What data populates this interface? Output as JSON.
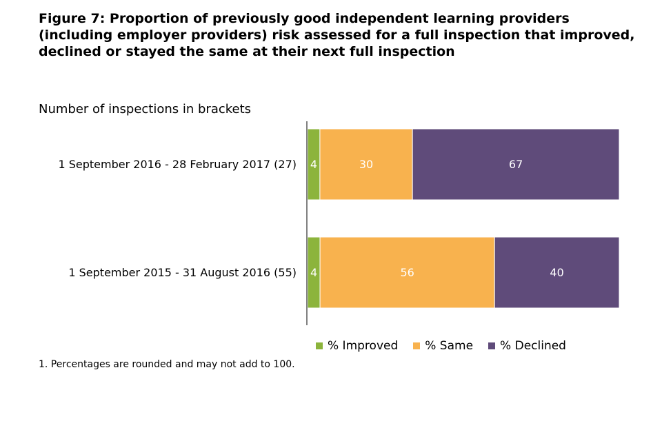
{
  "figure": {
    "title": "Figure 7: Proportion of previously good independent learning providers (including employer providers) risk assessed for a full inspection that improved, declined or stayed the same at their next full inspection",
    "subtitle": "Number of inspections in brackets",
    "footnote": "1. Percentages are rounded and may not add to 100."
  },
  "chart_data": {
    "type": "bar",
    "orientation": "horizontal",
    "stacked": true,
    "categories": [
      "1 September 2016 - 28 February 2017 (27)",
      "1 September 2015 - 31 August 2016 (55)"
    ],
    "series": [
      {
        "name": "% Improved",
        "values": [
          4,
          4
        ],
        "color": "#8cb43c"
      },
      {
        "name": "% Same",
        "values": [
          30,
          56
        ],
        "color": "#f8b24e"
      },
      {
        "name": "% Declined",
        "values": [
          67,
          40
        ],
        "color": "#5f4b7a"
      }
    ],
    "data_labels": true,
    "grid": false,
    "legend_position": "bottom"
  }
}
